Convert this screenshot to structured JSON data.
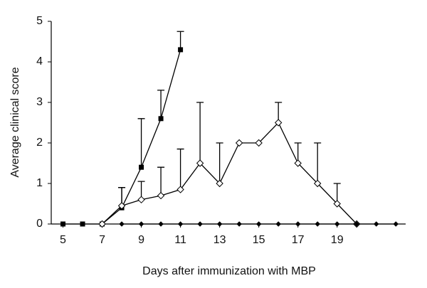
{
  "chart_data": {
    "type": "line",
    "x_label": "Days after immunization with MBP",
    "y_label": "Average clinical score",
    "x": [
      5,
      6,
      7,
      8,
      9,
      10,
      11,
      12,
      13,
      14,
      15,
      16,
      17,
      18,
      19,
      20,
      21,
      22
    ],
    "series": [
      {
        "color": "#000000",
        "marker": "square",
        "values": [
          0,
          0,
          0,
          0.4,
          1.4,
          2.6,
          4.3,
          null,
          null,
          null,
          null,
          null,
          null,
          null,
          null,
          null,
          null,
          null
        ],
        "errors": [
          null,
          null,
          null,
          0.5,
          1.2,
          0.7,
          0.45,
          null,
          null,
          null,
          null,
          null,
          null,
          null,
          null,
          null,
          null,
          null
        ]
      },
      {
        "color": "#000000",
        "marker": "diamond-open",
        "values": [
          null,
          null,
          0,
          0.45,
          0.6,
          0.7,
          0.85,
          1.5,
          1.0,
          2.0,
          2.0,
          2.5,
          1.5,
          1.0,
          0.5,
          0,
          null,
          null
        ],
        "errors": [
          null,
          null,
          null,
          0.45,
          0.45,
          0.7,
          1.0,
          1.5,
          1.0,
          null,
          null,
          0.5,
          0.5,
          1.0,
          0.5,
          null,
          null,
          null
        ]
      },
      {
        "color": "#000000",
        "marker": "diamond",
        "values": [
          null,
          null,
          null,
          0,
          0,
          0,
          0,
          0,
          0,
          0,
          0,
          0,
          0,
          0,
          0,
          0,
          0,
          0
        ],
        "errors": [
          null,
          null,
          null,
          null,
          null,
          null,
          null,
          null,
          null,
          null,
          null,
          null,
          null,
          null,
          null,
          null,
          null,
          null
        ]
      }
    ],
    "xlim": [
      4.4,
      22.5
    ],
    "ylim": [
      0,
      5
    ],
    "xticks": [
      5,
      7,
      9,
      11,
      13,
      15,
      17,
      19
    ],
    "yticks": [
      0,
      1,
      2,
      3,
      4,
      5
    ]
  }
}
